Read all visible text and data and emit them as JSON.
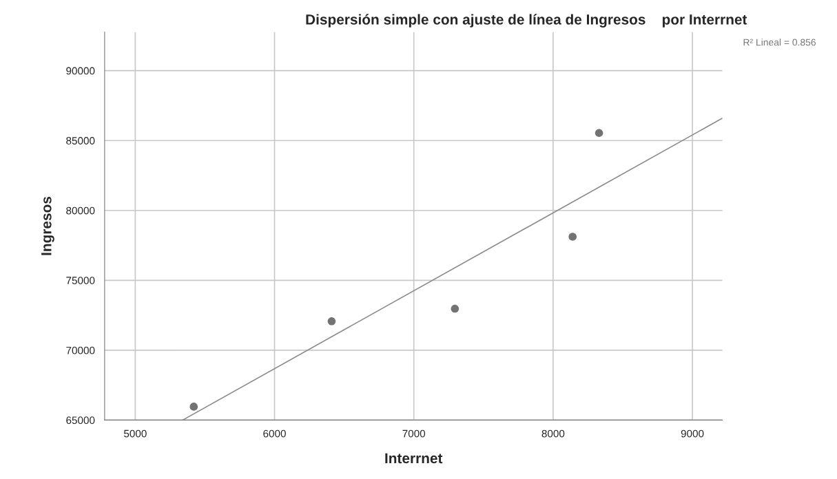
{
  "chart_data": {
    "type": "scatter",
    "title": "Dispersión simple con ajuste de línea de Ingresos    por Interrnet",
    "xlabel": "Interrnet",
    "ylabel": "Ingresos",
    "annotations": [
      "R² Lineal = 0.856"
    ],
    "series": [
      {
        "color": "#737373",
        "marker": "circle",
        "x": [
          5420,
          6410,
          7295,
          8140,
          8330
        ],
        "values": [
          65960,
          72070,
          72970,
          78120,
          85540
        ]
      },
      {
        "type": "line",
        "marker": "none",
        "color": "#8c8c8c",
        "x": [
          5340,
          9215
        ],
        "values": [
          65000,
          86600
        ]
      }
    ],
    "xlim": [
      4780,
      9215
    ],
    "ylim": [
      65000,
      92760
    ],
    "xticks": [
      5000,
      6000,
      7000,
      8000,
      9000
    ],
    "yticks": [
      65000,
      70000,
      75000,
      80000,
      85000,
      90000
    ],
    "grid": true,
    "legend": false
  }
}
